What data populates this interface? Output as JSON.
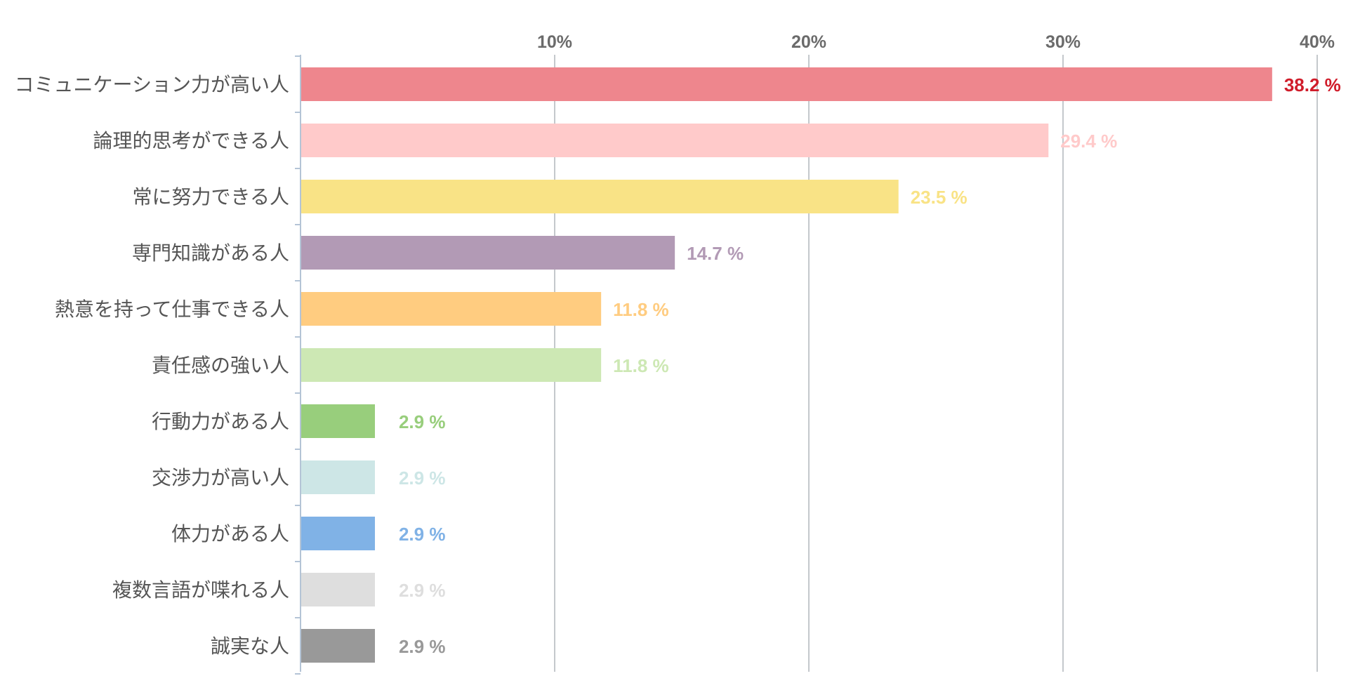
{
  "chart_data": {
    "type": "bar",
    "orientation": "horizontal",
    "title": "",
    "xlabel": "",
    "ylabel": "",
    "xlim": [
      0,
      40
    ],
    "x_ticks": [
      {
        "value": 10,
        "label": "10%"
      },
      {
        "value": 20,
        "label": "20%"
      },
      {
        "value": 30,
        "label": "30%"
      },
      {
        "value": 40,
        "label": "40%"
      }
    ],
    "grid": true,
    "legend": "none",
    "categories": [
      "コミュニケーション力が高い人",
      "論理的思考ができる人",
      "常に努力できる人",
      "専門知識がある人",
      "熱意を持って仕事できる人",
      "責任感の強い人",
      "行動力がある人",
      "交渉力が高い人",
      "体力がある人",
      "複数言語が喋れる人",
      "誠実な人"
    ],
    "values": [
      38.2,
      29.4,
      23.5,
      14.7,
      11.8,
      11.8,
      2.9,
      2.9,
      2.9,
      2.9,
      2.9
    ],
    "value_labels": [
      "38.2 %",
      "29.4 %",
      "23.5 %",
      "14.7 %",
      "11.8 %",
      "11.8 %",
      "2.9 %",
      "2.9 %",
      "2.9 %",
      "2.9 %",
      "2.9 %"
    ],
    "bar_colors": [
      "#ee868d",
      "#ffcaca",
      "#f9e386",
      "#b29ab5",
      "#ffcc80",
      "#cde8b4",
      "#98ce7c",
      "#cde6e6",
      "#80b2e6",
      "#dedede",
      "#999999"
    ],
    "label_colors": [
      "#d01c2a",
      "#ffcaca",
      "#f9e386",
      "#b29ab5",
      "#ffcc80",
      "#cde8b4",
      "#98ce7c",
      "#cde6e6",
      "#80b2e6",
      "#dedede",
      "#999999"
    ]
  }
}
